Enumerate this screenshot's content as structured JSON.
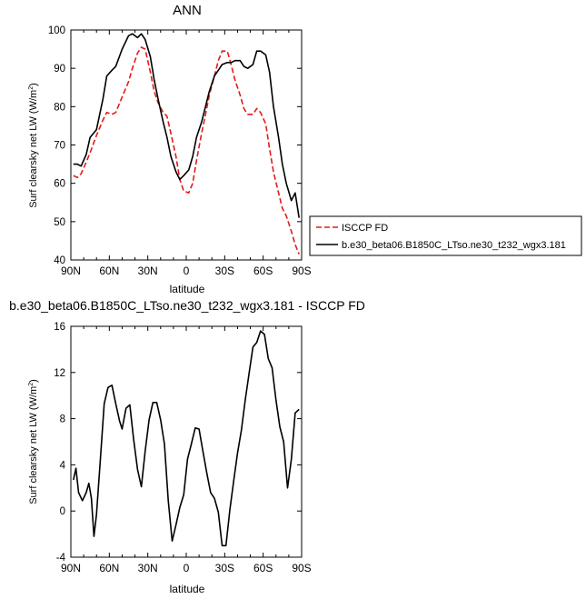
{
  "chart_data": [
    {
      "type": "line",
      "title": "ANN",
      "xlabel": "latitude",
      "ylabel_main": "Surf clearsky net LW (W/m",
      "ylabel_sup": "2",
      "ylabel_end": ")",
      "xlim": [
        -90,
        90
      ],
      "ylim": [
        40,
        100
      ],
      "xticks": [
        -90,
        -60,
        -30,
        0,
        30,
        60,
        90
      ],
      "xtick_labels": [
        "90N",
        "60N",
        "30N",
        "0",
        "30S",
        "60S",
        "90S"
      ],
      "yticks": [
        40,
        50,
        60,
        70,
        80,
        90,
        100
      ],
      "ytick_labels": [
        "40",
        "50",
        "60",
        "70",
        "80",
        "90",
        "100"
      ],
      "legend_position": "right",
      "series": [
        {
          "name": "ISCCP FD",
          "color": "#e41a1c",
          "style": "dashed",
          "x": [
            -88,
            -85,
            -82,
            -78,
            -75,
            -70,
            -65,
            -62,
            -58,
            -55,
            -50,
            -45,
            -42,
            -38,
            -35,
            -32,
            -28,
            -25,
            -22,
            -18,
            -15,
            -12,
            -8,
            -5,
            -2,
            2,
            5,
            8,
            12,
            15,
            18,
            22,
            25,
            28,
            32,
            35,
            38,
            42,
            45,
            48,
            52,
            55,
            58,
            62,
            65,
            68,
            72,
            75,
            78,
            82,
            85,
            88
          ],
          "y": [
            62,
            61.5,
            62.5,
            65.5,
            68,
            72.5,
            76.5,
            78.5,
            78,
            78.5,
            82.5,
            86.5,
            90,
            94,
            95.5,
            95,
            89,
            84,
            81,
            78.5,
            77.5,
            73,
            67,
            61,
            58,
            57.5,
            60,
            66,
            73,
            78,
            83,
            88,
            92,
            94.5,
            94.5,
            91,
            87,
            83,
            79.5,
            78,
            78,
            79.5,
            78.5,
            75.5,
            69,
            63,
            57.5,
            53.5,
            51.5,
            47.5,
            44,
            41.5
          ]
        },
        {
          "name": "b.e30_beta06.B1850C_LTso.ne30_t232_wgx3.181",
          "color": "#000000",
          "style": "solid",
          "x": [
            -88,
            -85,
            -82,
            -78,
            -75,
            -70,
            -65,
            -62,
            -58,
            -55,
            -50,
            -45,
            -42,
            -38,
            -35,
            -32,
            -28,
            -25,
            -22,
            -18,
            -15,
            -12,
            -8,
            -5,
            -2,
            2,
            5,
            8,
            12,
            15,
            18,
            22,
            25,
            28,
            32,
            35,
            38,
            42,
            45,
            48,
            52,
            55,
            58,
            62,
            65,
            68,
            72,
            75,
            78,
            82,
            85,
            88
          ],
          "y": [
            65,
            65,
            64.5,
            67.5,
            72,
            74,
            82,
            88,
            89.5,
            90.5,
            95,
            98.5,
            99,
            98,
            99,
            97.5,
            93,
            87,
            82,
            76,
            72,
            67,
            63,
            61,
            62,
            63.5,
            67,
            72,
            76,
            80,
            84,
            88,
            89.5,
            91,
            91.5,
            91.5,
            92,
            92,
            90.5,
            90,
            91,
            94.5,
            94.5,
            93.5,
            89,
            80,
            72,
            65,
            60,
            55.5,
            57.5,
            51
          ]
        }
      ]
    },
    {
      "type": "line",
      "title": "b.e30_beta06.B1850C_LTso.ne30_t232_wgx3.181 - ISCCP FD",
      "xlabel": "latitude",
      "ylabel_main": "Surf clearsky net LW (W/m",
      "ylabel_sup": "2",
      "ylabel_end": ")",
      "xlim": [
        -90,
        90
      ],
      "ylim": [
        -4,
        16
      ],
      "xticks": [
        -90,
        -60,
        -30,
        0,
        30,
        60,
        90
      ],
      "xtick_labels": [
        "90N",
        "60N",
        "30N",
        "0",
        "30S",
        "60S",
        "90S"
      ],
      "yticks": [
        -4,
        0,
        4,
        8,
        12,
        16
      ],
      "ytick_labels": [
        "-4",
        "0",
        "4",
        "8",
        "12",
        "16"
      ],
      "series": [
        {
          "color": "#000000",
          "style": "solid",
          "x": [
            -88,
            -86,
            -84,
            -81,
            -78,
            -76,
            -74,
            -72,
            -70,
            -67,
            -64,
            -61,
            -58,
            -55,
            -52,
            -50,
            -47,
            -44,
            -41,
            -38,
            -35,
            -32,
            -29,
            -26,
            -23,
            -20,
            -17,
            -14,
            -11,
            -8,
            -5,
            -2,
            1,
            4,
            7,
            10,
            13,
            16,
            19,
            22,
            25,
            28,
            31,
            34,
            37,
            40,
            43,
            46,
            49,
            52,
            55,
            58,
            61,
            64,
            67,
            70,
            73,
            76,
            79,
            82,
            85,
            88
          ],
          "y": [
            2.7,
            3.7,
            1.6,
            0.9,
            1.6,
            2.4,
            1.1,
            -2.2,
            -0.3,
            4.5,
            9.3,
            10.7,
            10.9,
            9.3,
            7.8,
            7.1,
            8.9,
            9.2,
            6.2,
            3.6,
            2.1,
            5.2,
            7.9,
            9.4,
            9.4,
            7.9,
            5.8,
            0.9,
            -2.6,
            -1.2,
            0.3,
            1.4,
            4.5,
            5.8,
            7.2,
            7.1,
            5.2,
            3.3,
            1.6,
            1.1,
            -0.1,
            -3.0,
            -3.0,
            0.1,
            2.6,
            5.0,
            7.0,
            9.6,
            11.9,
            14.2,
            14.6,
            15.6,
            15.3,
            13.2,
            12.4,
            9.6,
            7.3,
            6.0,
            2.0,
            4.5,
            8.5,
            8.8
          ]
        }
      ]
    }
  ]
}
